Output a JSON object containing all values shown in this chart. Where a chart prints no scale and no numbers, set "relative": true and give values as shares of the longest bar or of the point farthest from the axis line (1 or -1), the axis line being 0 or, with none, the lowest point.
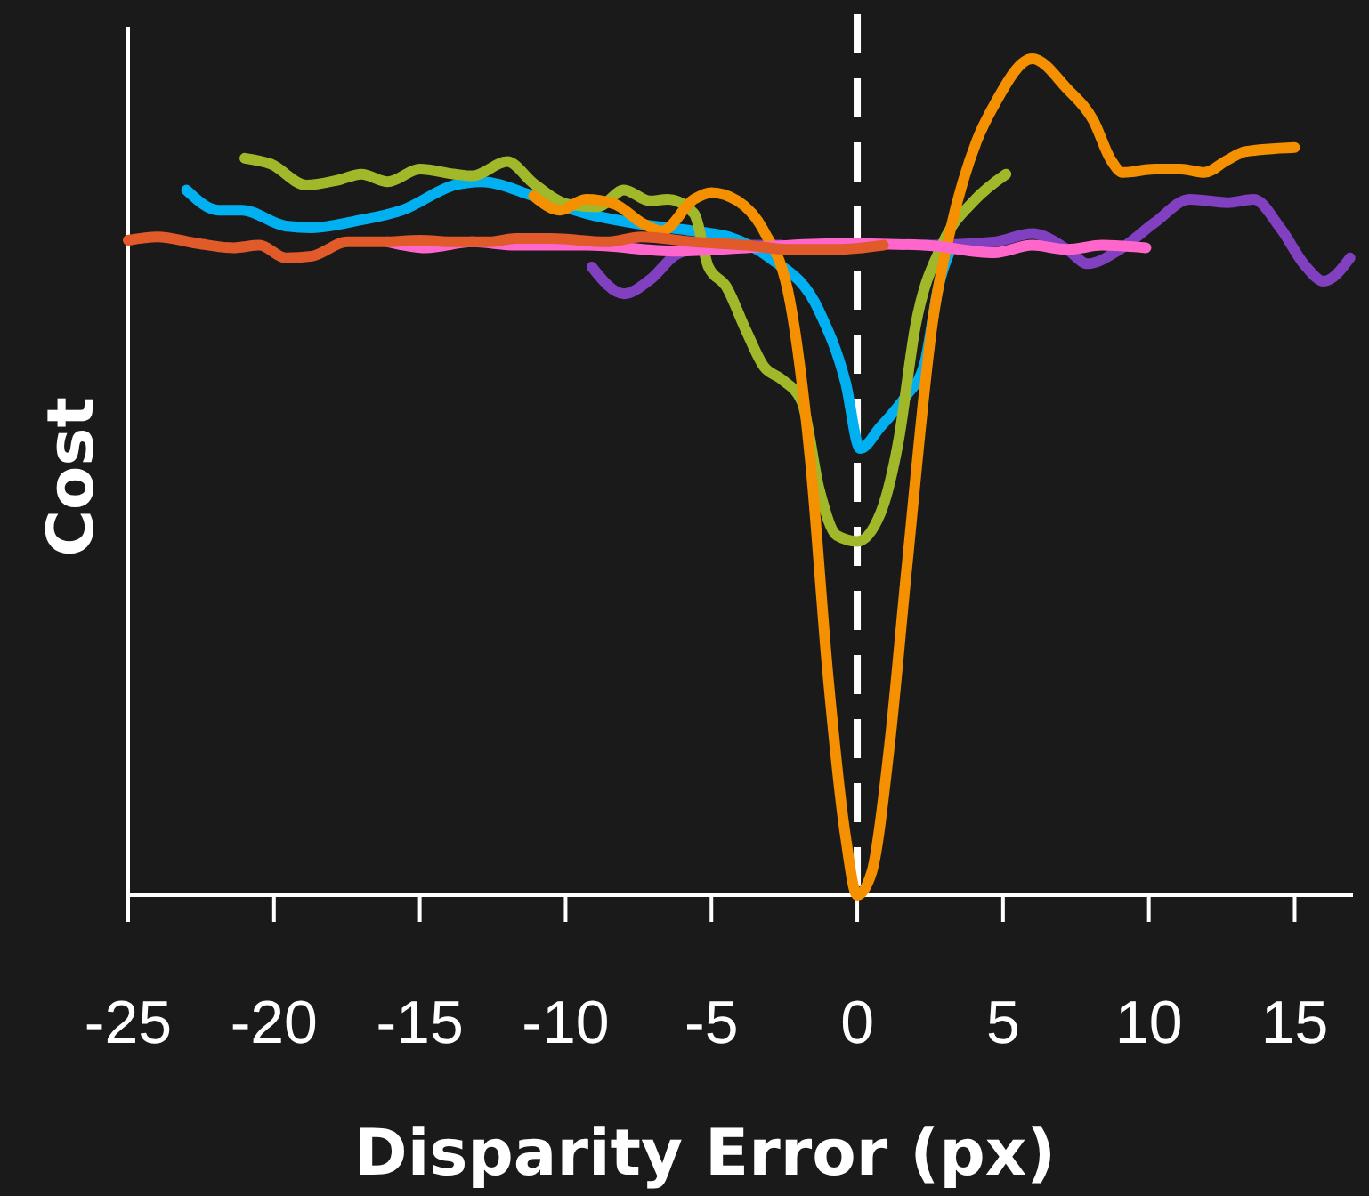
{
  "chart_data": {
    "type": "line",
    "relative": true,
    "xlabel": "Disparity Error (px)",
    "ylabel": "Cost",
    "xlim": [
      -25,
      17
    ],
    "xticks": [
      -25,
      -20,
      -15,
      -10,
      -5,
      0,
      5,
      10,
      15
    ],
    "grid": false,
    "line_style": "solid",
    "marker": "none",
    "ref_lines": [
      {
        "axis": "x",
        "value": 0,
        "color": "#ffffff",
        "line_style": "dashed"
      }
    ],
    "series": [
      {
        "color": "#8040c0",
        "x": [
          -9.1,
          -8.0,
          -7.1,
          -6.2,
          -5.0,
          -2.6,
          -0.1,
          2.3,
          4.7,
          6.0,
          7.2,
          7.9,
          9.0,
          10.2,
          11.4,
          12.7,
          13.6,
          14.5,
          15.4,
          16.0,
          16.9
        ],
        "values": [
          0.751,
          0.719,
          0.736,
          0.766,
          0.777,
          0.777,
          null,
          0.777,
          0.781,
          0.791,
          0.772,
          0.755,
          0.772,
          0.804,
          0.832,
          0.828,
          0.832,
          0.798,
          0.751,
          0.734,
          0.762
        ]
      },
      {
        "color": "#00b0f0",
        "x": [
          -23.0,
          -21.9,
          -21.1,
          -19.6,
          -18.7,
          -17.2,
          -15.6,
          -13.8,
          -12.9,
          -11.1,
          -9.3,
          -7.4,
          -5.6,
          -4.4,
          -3.0,
          -1.3,
          -0.4,
          0.1,
          0.8,
          1.7,
          2.3,
          2.8,
          3.2
        ],
        "values": [
          0.843,
          0.819,
          0.819,
          0.8,
          0.798,
          0.806,
          0.819,
          0.849,
          0.853,
          0.836,
          0.815,
          0.802,
          0.794,
          0.787,
          0.762,
          0.698,
          0.613,
          0.534,
          0.56,
          0.598,
          0.634,
          0.73,
          0.772
        ]
      },
      {
        "color": "#a0b82a",
        "x": [
          -21.0,
          -20.1,
          -18.9,
          -17.8,
          -17.0,
          -16.1,
          -15.0,
          -13.8,
          -13.2,
          -12.0,
          -11.1,
          -9.9,
          -8.9,
          -8.0,
          -7.1,
          -6.5,
          -5.6,
          -5.1,
          -4.5,
          -3.8,
          -3.2,
          -2.6,
          -1.9,
          -1.3,
          -0.7,
          0.0,
          0.8,
          1.4,
          2.0,
          2.9,
          4.0,
          5.1
        ],
        "values": [
          0.881,
          0.874,
          0.849,
          0.855,
          0.862,
          0.853,
          0.868,
          0.862,
          0.86,
          0.877,
          0.851,
          0.826,
          0.823,
          0.843,
          0.83,
          0.832,
          0.815,
          0.751,
          0.728,
          0.674,
          0.632,
          0.617,
          0.59,
          0.485,
          0.43,
          0.423,
          0.457,
          0.54,
          0.681,
          0.777,
          0.83,
          0.862
        ]
      },
      {
        "color": "#f59000",
        "x": [
          -11.1,
          -10.2,
          -9.3,
          -8.3,
          -7.4,
          -6.7,
          -5.6,
          -5.0,
          -4.1,
          -3.2,
          -2.3,
          -1.6,
          -1.0,
          -0.4,
          0.0,
          0.5,
          1.1,
          1.7,
          2.6,
          3.2,
          4.1,
          4.7,
          6.0,
          7.2,
          8.1,
          8.7,
          9.1,
          10.2,
          11.1,
          11.9,
          12.7,
          13.3,
          15.0
        ],
        "values": [
          0.836,
          0.819,
          0.832,
          0.826,
          0.804,
          0.794,
          0.832,
          0.84,
          0.83,
          0.794,
          0.709,
          0.517,
          0.262,
          0.07,
          0.0,
          0.028,
          0.177,
          0.391,
          0.689,
          0.796,
          0.902,
          0.945,
          1.0,
          0.964,
          0.926,
          0.879,
          0.864,
          0.868,
          0.868,
          0.864,
          0.879,
          0.889,
          0.894
        ]
      },
      {
        "color": "#ff66cc",
        "x": [
          -16.1,
          -14.8,
          -13.2,
          -11.7,
          -9.3,
          -6.2,
          -3.8,
          -0.7,
          2.3,
          4.7,
          6.0,
          7.2,
          8.4,
          9.9
        ],
        "values": [
          0.781,
          0.774,
          0.781,
          0.777,
          0.777,
          0.77,
          0.774,
          0.779,
          0.777,
          0.768,
          0.777,
          0.772,
          0.777,
          0.774
        ]
      },
      {
        "color": "#e05a2a",
        "x": [
          -25.0,
          -24.0,
          -22.6,
          -21.4,
          -20.5,
          -19.6,
          -18.7,
          -17.5,
          -16.3,
          -15.0,
          -13.8,
          -12.6,
          -11.7,
          -10.5,
          -8.6,
          -7.4,
          -5.6,
          -3.8,
          -2.3,
          -0.7,
          0.9
        ],
        "values": [
          0.783,
          0.787,
          0.779,
          0.774,
          0.777,
          0.762,
          0.764,
          0.781,
          0.781,
          0.783,
          0.781,
          0.781,
          0.785,
          0.785,
          0.781,
          0.787,
          0.781,
          0.777,
          0.772,
          0.772,
          0.777
        ]
      }
    ]
  }
}
